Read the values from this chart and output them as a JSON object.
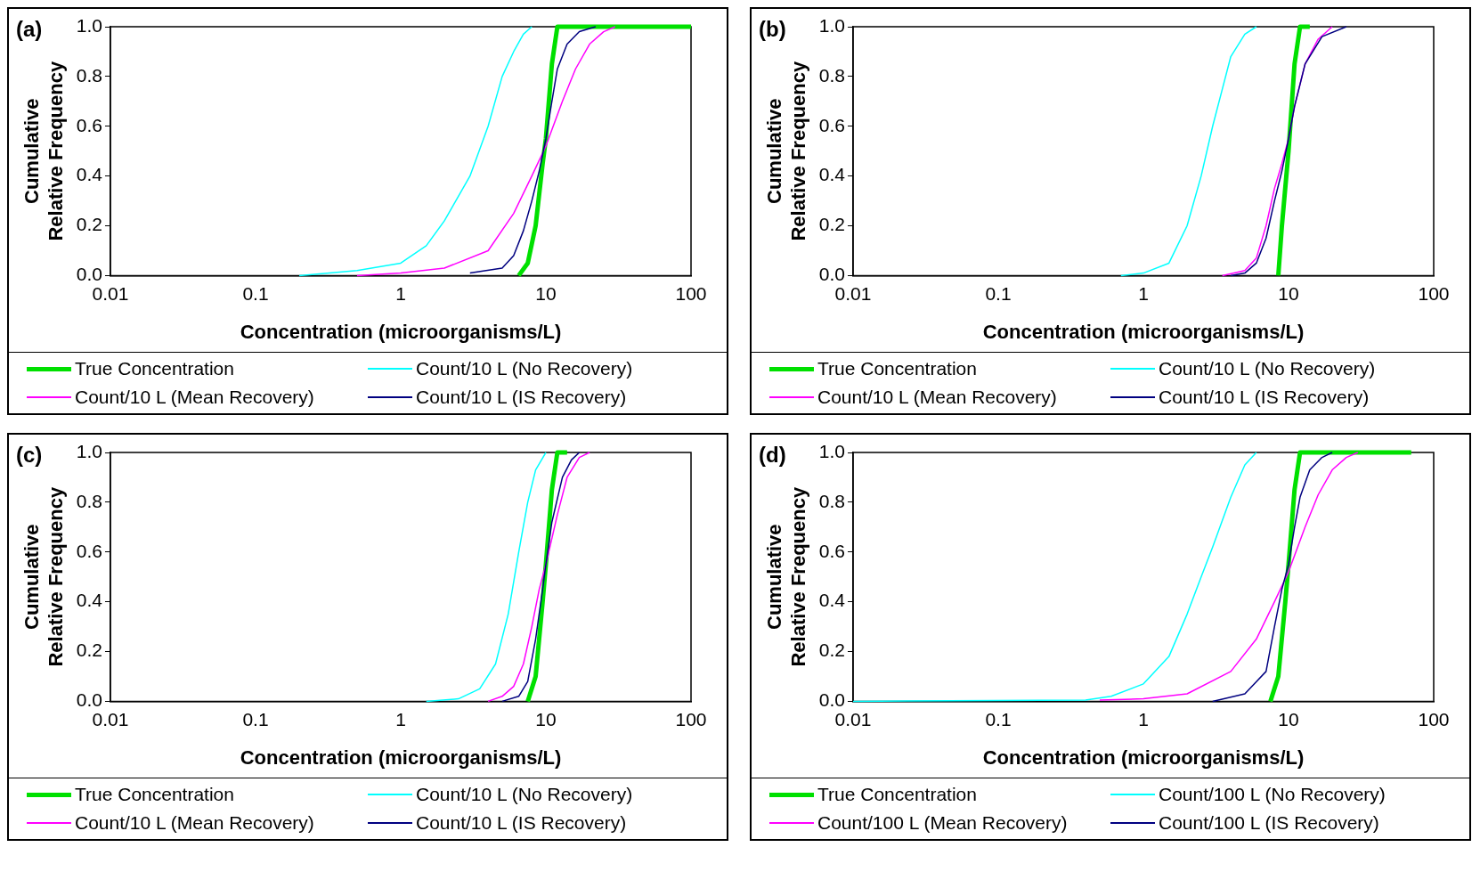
{
  "chart_data": [
    {
      "type": "line",
      "annotations": [
        "(a)"
      ],
      "xlabel": "Concentration (microorganisms/L)",
      "ylabel": "Cumulative Relative Frequency",
      "log": "x",
      "xlim": [
        0.01,
        100
      ],
      "xticks": [
        0.01,
        0.1,
        1,
        10,
        100
      ],
      "ylim": [
        0,
        1
      ],
      "yticks": [
        {
          "value": 0,
          "label": "0.0"
        },
        {
          "value": 0.2,
          "label": "0.2"
        },
        {
          "value": 0.4,
          "label": "0.4"
        },
        {
          "value": 0.6,
          "label": "0.6"
        },
        {
          "value": 0.8,
          "label": "0.8"
        },
        {
          "value": 1,
          "label": "1.0"
        }
      ],
      "grid": false,
      "legend": "bottom",
      "marker": "none",
      "line_style": "solid",
      "series": [
        {
          "name": "True Concentration",
          "color": "#00e000",
          "x": [
            6.5,
            7.5,
            8.5,
            9.5,
            10,
            11,
            12,
            30,
            100
          ],
          "values": [
            0,
            0.05,
            0.2,
            0.45,
            0.55,
            0.85,
            1,
            1,
            1
          ]
        },
        {
          "name": "Count/10 L (No Recovery)",
          "color": "#00ffff",
          "x": [
            0.2,
            0.5,
            1,
            1.5,
            2,
            3,
            4,
            5,
            6,
            7,
            8
          ],
          "values": [
            0,
            0.02,
            0.05,
            0.12,
            0.22,
            0.4,
            0.6,
            0.8,
            0.9,
            0.97,
            1
          ]
        },
        {
          "name": "Count/10 L (Mean Recovery)",
          "color": "#ff00ff",
          "x": [
            0.5,
            1,
            2,
            4,
            6,
            8,
            10,
            13,
            16,
            20,
            25,
            30
          ],
          "values": [
            0,
            0.01,
            0.03,
            0.1,
            0.25,
            0.4,
            0.52,
            0.7,
            0.83,
            0.93,
            0.98,
            1
          ]
        },
        {
          "name": "Count/10 L (IS Recovery)",
          "color": "#000080",
          "x": [
            3,
            5,
            6,
            7,
            8,
            9,
            10,
            11,
            12,
            14,
            17,
            22
          ],
          "values": [
            0.01,
            0.03,
            0.08,
            0.18,
            0.3,
            0.42,
            0.55,
            0.7,
            0.83,
            0.93,
            0.98,
            1
          ]
        }
      ]
    },
    {
      "type": "line",
      "annotations": [
        "(b)"
      ],
      "xlabel": "Concentration (microorganisms/L)",
      "ylabel": "Cumulative Relative Frequency",
      "log": "x",
      "xlim": [
        0.01,
        100
      ],
      "xticks": [
        0.01,
        0.1,
        1,
        10,
        100
      ],
      "ylim": [
        0,
        1
      ],
      "yticks": [
        {
          "value": 0,
          "label": "0.0"
        },
        {
          "value": 0.2,
          "label": "0.2"
        },
        {
          "value": 0.4,
          "label": "0.4"
        },
        {
          "value": 0.6,
          "label": "0.6"
        },
        {
          "value": 0.8,
          "label": "0.8"
        },
        {
          "value": 1,
          "label": "1.0"
        }
      ],
      "grid": false,
      "legend": "bottom",
      "marker": "none",
      "line_style": "solid",
      "series": [
        {
          "name": "True Concentration",
          "color": "#00e000",
          "x": [
            8.5,
            9,
            10,
            11,
            12,
            14
          ],
          "values": [
            0,
            0.2,
            0.5,
            0.85,
            1,
            1
          ]
        },
        {
          "name": "Count/10 L (No Recovery)",
          "color": "#00ffff",
          "x": [
            0.7,
            1,
            1.5,
            2,
            2.5,
            3,
            3.5,
            4,
            5,
            6
          ],
          "values": [
            0,
            0.01,
            0.05,
            0.2,
            0.4,
            0.6,
            0.75,
            0.88,
            0.97,
            1
          ]
        },
        {
          "name": "Count/10 L (Mean Recovery)",
          "color": "#ff00ff",
          "x": [
            3.5,
            5,
            6,
            7,
            8,
            9,
            10,
            11,
            13,
            16,
            20
          ],
          "values": [
            0,
            0.02,
            0.07,
            0.2,
            0.35,
            0.45,
            0.55,
            0.68,
            0.85,
            0.95,
            1
          ]
        },
        {
          "name": "Count/10 L (IS Recovery)",
          "color": "#000080",
          "x": [
            4,
            5,
            6,
            7,
            8,
            9,
            10,
            11,
            13,
            17,
            25
          ],
          "values": [
            0,
            0.01,
            0.05,
            0.15,
            0.3,
            0.42,
            0.55,
            0.68,
            0.85,
            0.96,
            1
          ]
        }
      ]
    },
    {
      "type": "line",
      "annotations": [
        "(c)"
      ],
      "xlabel": "Concentration (microorganisms/L)",
      "ylabel": "Cumulative Relative Frequency",
      "log": "x",
      "xlim": [
        0.01,
        100
      ],
      "xticks": [
        0.01,
        0.1,
        1,
        10,
        100
      ],
      "ylim": [
        0,
        1
      ],
      "yticks": [
        {
          "value": 0,
          "label": "0.0"
        },
        {
          "value": 0.2,
          "label": "0.2"
        },
        {
          "value": 0.4,
          "label": "0.4"
        },
        {
          "value": 0.6,
          "label": "0.6"
        },
        {
          "value": 0.8,
          "label": "0.8"
        },
        {
          "value": 1,
          "label": "1.0"
        }
      ],
      "grid": false,
      "legend": "bottom",
      "marker": "none",
      "line_style": "solid",
      "series": [
        {
          "name": "True Concentration",
          "color": "#00e000",
          "x": [
            7.5,
            8.5,
            9.5,
            10,
            11,
            12,
            14
          ],
          "values": [
            0,
            0.1,
            0.4,
            0.55,
            0.85,
            1,
            1
          ]
        },
        {
          "name": "Count/10 L (No Recovery)",
          "color": "#00ffff",
          "x": [
            1.5,
            2.5,
            3.5,
            4.5,
            5.5,
            6.5,
            7.5,
            8.5,
            10
          ],
          "values": [
            0,
            0.01,
            0.05,
            0.15,
            0.35,
            0.6,
            0.8,
            0.93,
            1
          ]
        },
        {
          "name": "Count/10 L (Mean Recovery)",
          "color": "#ff00ff",
          "x": [
            4,
            5,
            6,
            7,
            8,
            9,
            10,
            12,
            14,
            17,
            20
          ],
          "values": [
            0,
            0.02,
            0.06,
            0.15,
            0.3,
            0.45,
            0.55,
            0.75,
            0.9,
            0.98,
            1
          ]
        },
        {
          "name": "Count/10 L (IS Recovery)",
          "color": "#000080",
          "x": [
            5,
            6.5,
            7.5,
            8.5,
            9.5,
            10,
            11,
            13,
            15,
            17
          ],
          "values": [
            0,
            0.02,
            0.08,
            0.25,
            0.45,
            0.55,
            0.72,
            0.9,
            0.97,
            1
          ]
        }
      ]
    },
    {
      "type": "line",
      "annotations": [
        "(d)"
      ],
      "xlabel": "Concentration (microorganisms/L)",
      "ylabel": "Cumulative Relative Frequency",
      "log": "x",
      "xlim": [
        0.01,
        100
      ],
      "xticks": [
        0.01,
        0.1,
        1,
        10,
        100
      ],
      "ylim": [
        0,
        1
      ],
      "yticks": [
        {
          "value": 0,
          "label": "0.0"
        },
        {
          "value": 0.2,
          "label": "0.2"
        },
        {
          "value": 0.4,
          "label": "0.4"
        },
        {
          "value": 0.6,
          "label": "0.6"
        },
        {
          "value": 0.8,
          "label": "0.8"
        },
        {
          "value": 1,
          "label": "1.0"
        }
      ],
      "grid": false,
      "legend": "bottom",
      "marker": "none",
      "line_style": "solid",
      "series": [
        {
          "name": "True Concentration",
          "color": "#00e000",
          "x": [
            7.5,
            8.5,
            9.5,
            10,
            11,
            12,
            30,
            70
          ],
          "values": [
            0,
            0.1,
            0.4,
            0.55,
            0.85,
            1,
            1,
            1
          ]
        },
        {
          "name": "Count/100 L (No Recovery)",
          "color": "#00ffff",
          "x": [
            0.01,
            0.4,
            0.6,
            1,
            1.5,
            2,
            2.5,
            3,
            4,
            5,
            6
          ],
          "values": [
            0,
            0.005,
            0.02,
            0.07,
            0.18,
            0.35,
            0.5,
            0.62,
            0.82,
            0.95,
            1
          ]
        },
        {
          "name": "Count/100 L (Mean Recovery)",
          "color": "#ff00ff",
          "x": [
            0.5,
            1,
            2,
            4,
            6,
            8,
            10,
            13,
            16,
            20,
            25,
            30
          ],
          "values": [
            0.005,
            0.01,
            0.03,
            0.12,
            0.25,
            0.4,
            0.52,
            0.7,
            0.83,
            0.93,
            0.98,
            1
          ]
        },
        {
          "name": "Count/100 L (IS Recovery)",
          "color": "#000080",
          "x": [
            3,
            5,
            7,
            8,
            9,
            10,
            11,
            12,
            14,
            17,
            20
          ],
          "values": [
            0,
            0.03,
            0.12,
            0.3,
            0.45,
            0.55,
            0.7,
            0.82,
            0.93,
            0.98,
            1
          ]
        }
      ]
    }
  ]
}
